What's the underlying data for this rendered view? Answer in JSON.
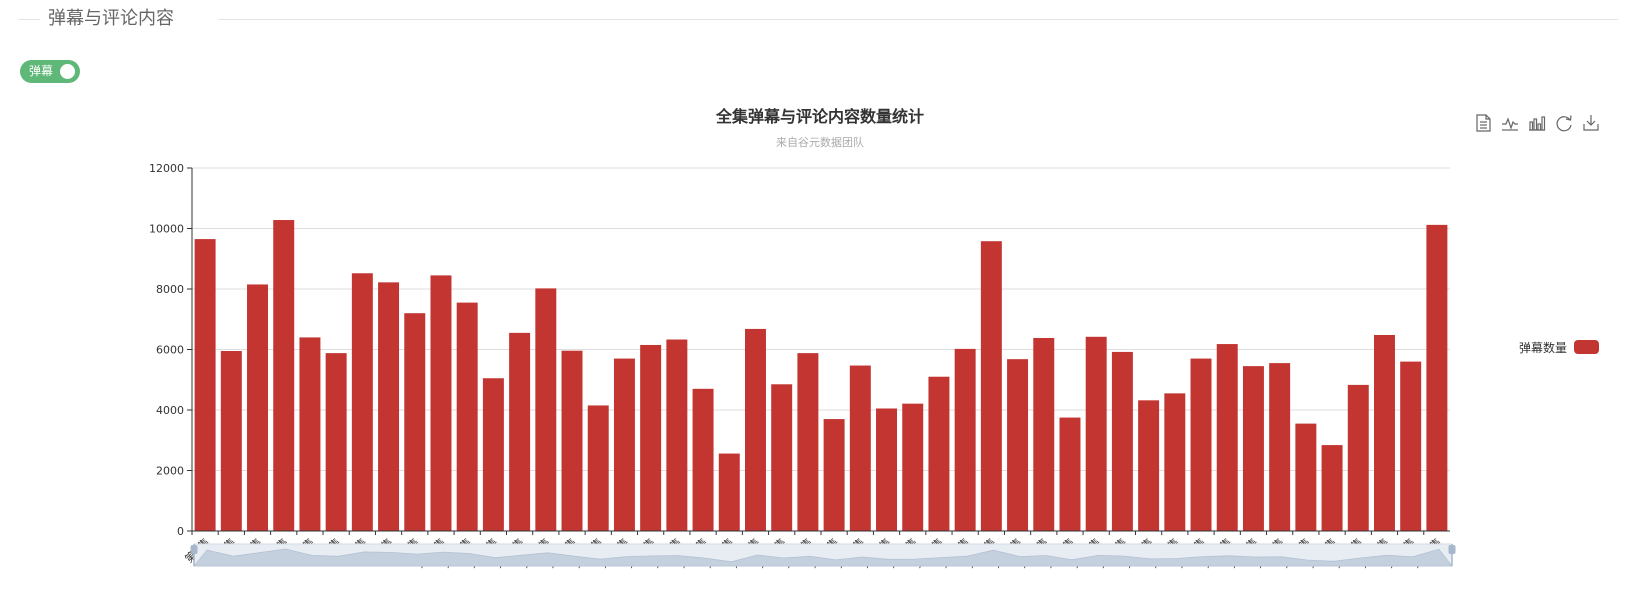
{
  "section": {
    "title": "弹幕与评论内容"
  },
  "toggle": {
    "label": "弹幕",
    "on": true,
    "color": "#5fb878"
  },
  "toolbox": [
    {
      "icon": "data-view-icon"
    },
    {
      "icon": "line-chart-icon"
    },
    {
      "icon": "bar-chart-icon"
    },
    {
      "icon": "restore-icon"
    },
    {
      "icon": "download-icon"
    }
  ],
  "chart_data": {
    "type": "bar",
    "title": "全集弹幕与评论内容数量统计",
    "subtitle": "来自谷元数据团队",
    "bar_color": "#c23531",
    "ylim": [
      0,
      12000
    ],
    "yticks": [
      0,
      2000,
      4000,
      6000,
      8000,
      10000,
      12000
    ],
    "grid": true,
    "legend_position": "right",
    "categories": [
      "第1集",
      "第2集",
      "第3集",
      "第4集",
      "第5集",
      "第6集",
      "第7集",
      "第8集",
      "第9集",
      "第10集",
      "第11集",
      "第12集",
      "第13集",
      "第14集",
      "第15集",
      "第16集",
      "第17集",
      "第18集",
      "第19集",
      "第20集",
      "第21集",
      "第22集",
      "第23集",
      "第24集",
      "第25集",
      "第26集",
      "第27集",
      "第28集",
      "第29集",
      "第30集",
      "第31集",
      "第32集",
      "第33集",
      "第34集",
      "第35集",
      "第36集",
      "第37集",
      "第38集",
      "第39集",
      "第40集",
      "第41集",
      "第42集",
      "第43集",
      "第44集",
      "第45集",
      "第46集",
      "第47集",
      "第48集"
    ],
    "series": [
      {
        "name": "弹幕数量",
        "values": [
          9650,
          5950,
          8150,
          10280,
          6400,
          5880,
          8520,
          8220,
          7200,
          8450,
          7550,
          5050,
          6550,
          8020,
          5960,
          4150,
          5700,
          6150,
          6330,
          4700,
          2560,
          6680,
          4850,
          5880,
          3700,
          5470,
          4050,
          4210,
          5100,
          6020,
          9580,
          5680,
          6380,
          3750,
          6420,
          5920,
          4320,
          4550,
          5700,
          6180,
          5450,
          5550,
          3550,
          2840,
          4830,
          6480,
          5600,
          10120
        ]
      }
    ],
    "datazoom": {
      "start": 0,
      "end": 100
    }
  }
}
